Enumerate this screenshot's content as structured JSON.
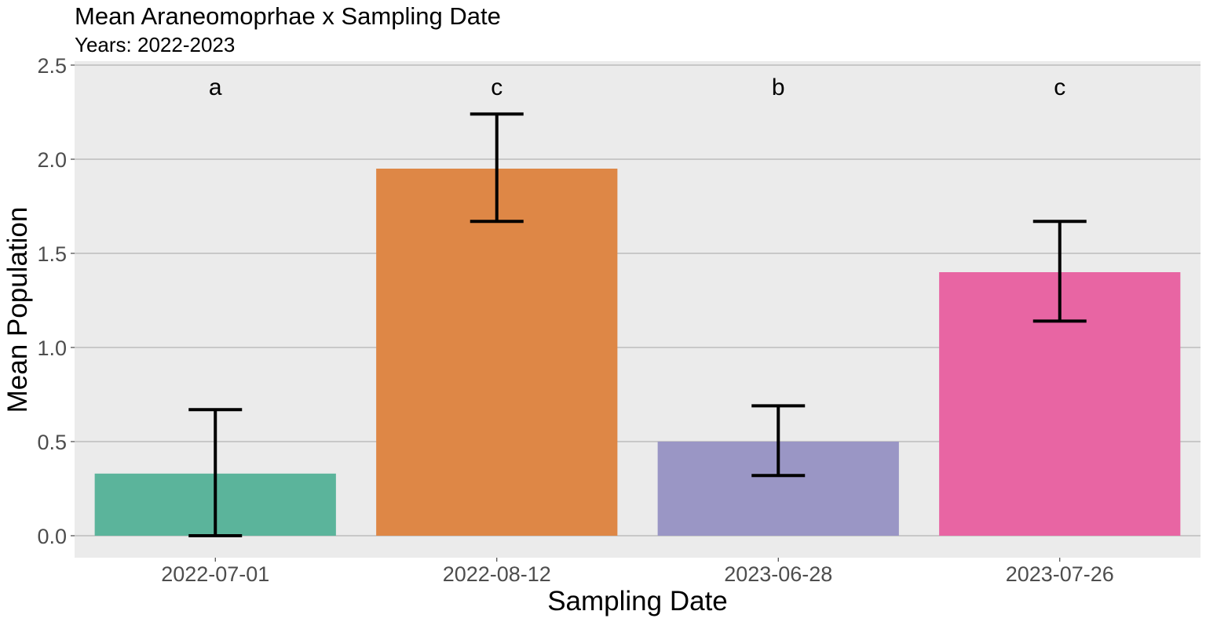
{
  "chart_data": {
    "type": "bar",
    "title": "Mean Araneomoprhae x Sampling Date",
    "subtitle": "Years: 2022-2023",
    "xlabel": "Sampling Date",
    "ylabel": "Mean Population",
    "ylim": [
      -0.11,
      2.5
    ],
    "yticks": [
      "0.0",
      "0.5",
      "1.0",
      "1.5",
      "2.0",
      "2.5"
    ],
    "ytick_values": [
      0,
      0.5,
      1.0,
      1.5,
      2.0,
      2.5
    ],
    "grid": true,
    "legend": "none",
    "categories": [
      "2022-07-01",
      "2022-08-12",
      "2023-06-28",
      "2023-07-26"
    ],
    "values": [
      0.33,
      1.95,
      0.5,
      1.4
    ],
    "error_low": [
      0.0,
      1.67,
      0.32,
      1.14
    ],
    "error_high": [
      0.67,
      2.24,
      0.69,
      1.67
    ],
    "significance_letters": [
      "a",
      "c",
      "b",
      "c"
    ],
    "colors": [
      "#5bb49b",
      "#de8746",
      "#9a96c5",
      "#e865a3"
    ],
    "panel_background": "#ebebeb",
    "gridline_color": "#a6a6a6"
  }
}
